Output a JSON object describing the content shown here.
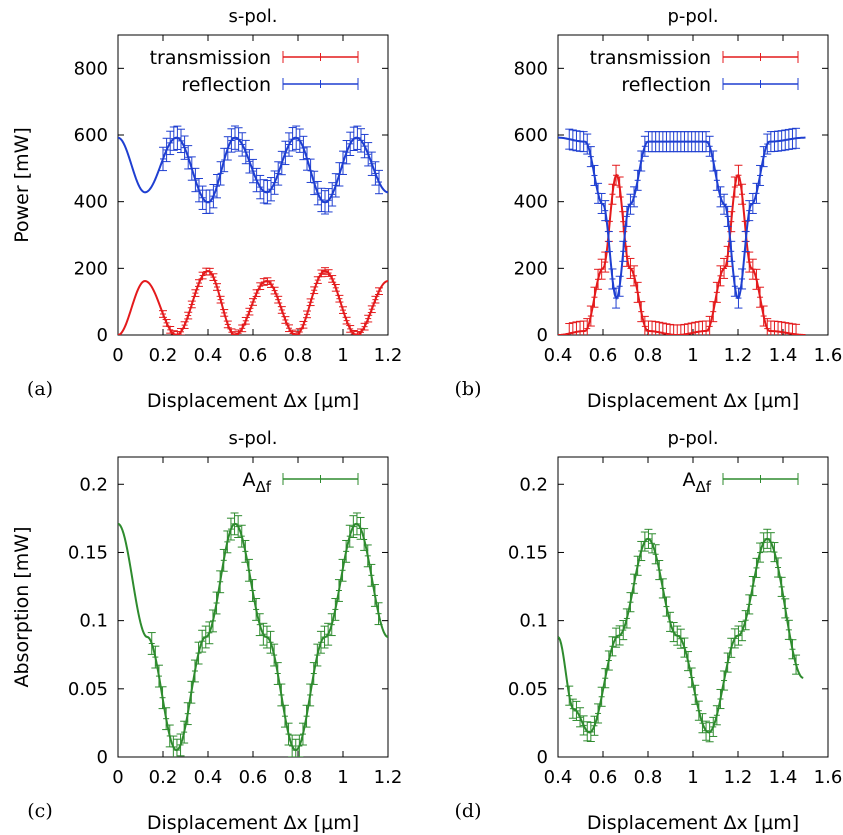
{
  "chart_data": [
    {
      "panel": "(a)",
      "type": "line",
      "title": "s-pol.",
      "xlabel": "Displacement Δx [μm]",
      "ylabel": "Power [mW]",
      "xlim": [
        0,
        1.2
      ],
      "ylim": [
        0,
        900
      ],
      "xticks": [
        "0",
        "0.2",
        "0.4",
        "0.6",
        "0.8",
        "1",
        "1.2"
      ],
      "yticks": [
        "0",
        "200",
        "400",
        "600",
        "800"
      ],
      "legend_position": "top-right",
      "series": [
        {
          "name": "transmission",
          "color": "#e41a1c",
          "errorbar": 10,
          "x": [
            0.0,
            0.12,
            0.26,
            0.4,
            0.52,
            0.66,
            0.79,
            0.92,
            1.06,
            1.2
          ],
          "y": [
            0,
            162,
            0,
            192,
            0,
            162,
            0,
            192,
            0,
            162
          ]
        },
        {
          "name": "reflection",
          "color": "#1f3fd1",
          "errorbar": 35,
          "x": [
            0.0,
            0.12,
            0.26,
            0.4,
            0.52,
            0.66,
            0.79,
            0.92,
            1.06,
            1.2
          ],
          "y": [
            592,
            428,
            592,
            398,
            592,
            428,
            592,
            398,
            592,
            428
          ]
        }
      ]
    },
    {
      "panel": "(b)",
      "type": "line",
      "title": "p-pol.",
      "xlabel": "Displacement Δx [μm]",
      "ylabel": "",
      "xlim": [
        0.4,
        1.6
      ],
      "ylim": [
        0,
        900
      ],
      "xticks": [
        "0.4",
        "0.6",
        "0.8",
        "1",
        "1.2",
        "1.4",
        "1.6"
      ],
      "yticks": [
        "0",
        "200",
        "400",
        "600",
        "800"
      ],
      "legend_position": "top-right",
      "series": [
        {
          "name": "transmission",
          "color": "#e41a1c",
          "errorbar": 30,
          "x": [
            0.4,
            0.52,
            0.6,
            0.66,
            0.72,
            0.8,
            0.93,
            1.06,
            1.14,
            1.2,
            1.26,
            1.34,
            1.5
          ],
          "y": [
            0,
            12,
            200,
            480,
            200,
            12,
            0,
            12,
            200,
            480,
            200,
            12,
            0
          ]
        },
        {
          "name": "reflection",
          "color": "#1f3fd1",
          "errorbar": 30,
          "x": [
            0.4,
            0.52,
            0.6,
            0.66,
            0.72,
            0.8,
            0.93,
            1.06,
            1.14,
            1.2,
            1.26,
            1.34,
            1.5
          ],
          "y": [
            592,
            580,
            392,
            110,
            392,
            580,
            580,
            580,
            392,
            110,
            392,
            580,
            592
          ]
        }
      ]
    },
    {
      "panel": "(c)",
      "type": "line",
      "title": "s-pol.",
      "xlabel": "Displacement Δx [μm]",
      "ylabel": "Absorption [mW]",
      "xlim": [
        0,
        1.2
      ],
      "ylim": [
        0,
        0.22
      ],
      "xticks": [
        "0",
        "0.2",
        "0.4",
        "0.6",
        "0.8",
        "1",
        "1.2"
      ],
      "yticks": [
        "0",
        "0.05",
        "0.1",
        "0.15",
        "0.2"
      ],
      "legend_position": "top-right",
      "series": [
        {
          "name": "A",
          "subscript": "Δf",
          "color": "#2e8b2e",
          "errorbar": 0.008,
          "x": [
            0.0,
            0.13,
            0.26,
            0.39,
            0.52,
            0.66,
            0.79,
            0.92,
            1.06,
            1.2
          ],
          "y": [
            0.171,
            0.088,
            0.005,
            0.088,
            0.171,
            0.088,
            0.005,
            0.088,
            0.171,
            0.088
          ]
        }
      ]
    },
    {
      "panel": "(d)",
      "type": "line",
      "title": "p-pol.",
      "xlabel": "Displacement Δx [μm]",
      "ylabel": "",
      "xlim": [
        0.4,
        1.6
      ],
      "ylim": [
        0,
        0.22
      ],
      "xticks": [
        "0.4",
        "0.6",
        "0.8",
        "1",
        "1.2",
        "1.4",
        "1.6"
      ],
      "yticks": [
        "0",
        "0.05",
        "0.1",
        "0.15",
        "0.2"
      ],
      "legend_position": "top-right",
      "series": [
        {
          "name": "A",
          "subscript": "Δf",
          "color": "#2e8b2e",
          "errorbar": 0.007,
          "x": [
            0.4,
            0.47,
            0.54,
            0.67,
            0.8,
            0.93,
            1.07,
            1.2,
            1.33,
            1.49
          ],
          "y": [
            0.088,
            0.035,
            0.018,
            0.089,
            0.16,
            0.089,
            0.018,
            0.089,
            0.16,
            0.058
          ]
        }
      ]
    }
  ]
}
